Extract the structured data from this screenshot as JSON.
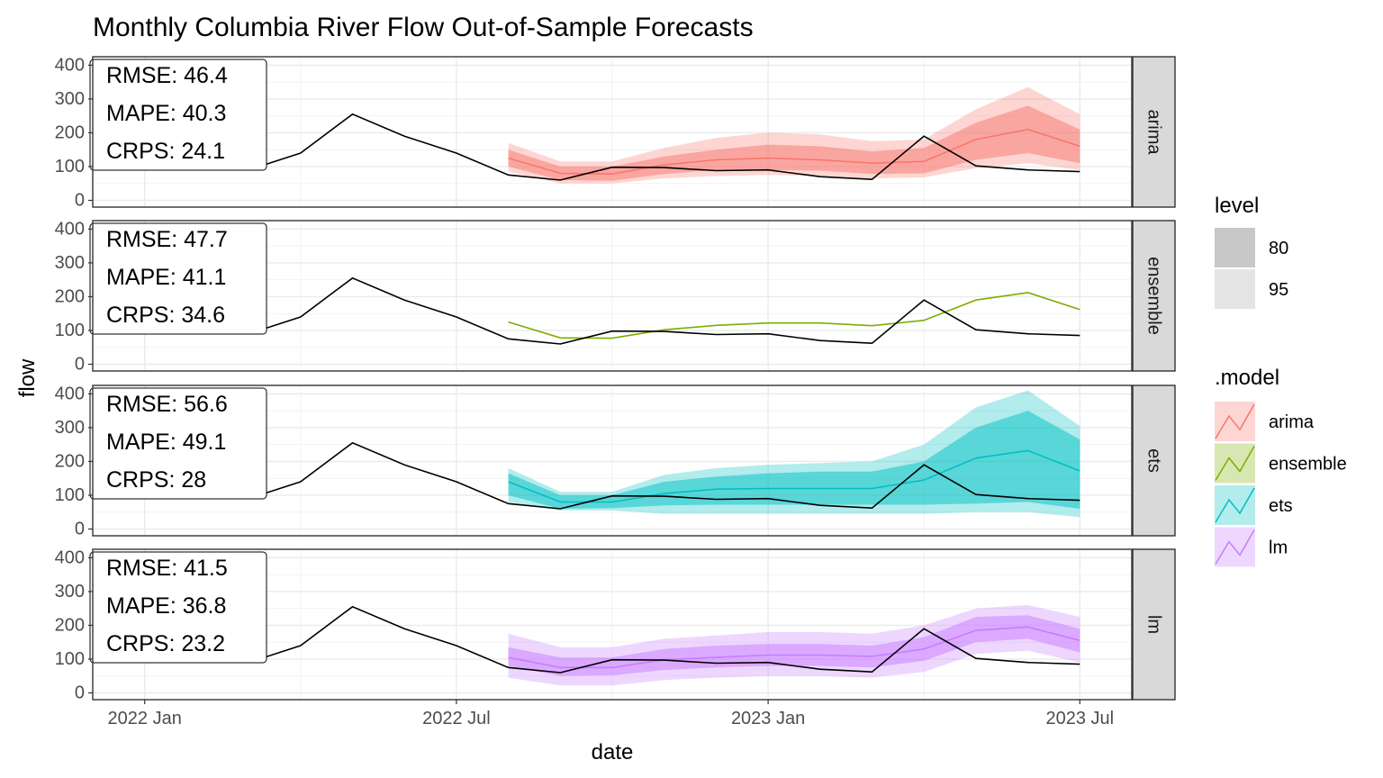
{
  "chart_data": {
    "type": "line",
    "title": "Monthly Columbia River Flow Out-of-Sample Forecasts",
    "xlabel": "date",
    "ylabel": "flow",
    "x_ticks": [
      "2022 Jan",
      "2022 Jul",
      "2023 Jan",
      "2023 Jul"
    ],
    "x_tick_values": [
      "2022-01",
      "2022-07",
      "2023-01",
      "2023-07"
    ],
    "xlim": [
      "2021-12",
      "2023-08"
    ],
    "y_ticks": [
      "0",
      "100",
      "200",
      "300",
      "400"
    ],
    "ylim": [
      -20,
      425
    ],
    "grid": true,
    "legend_placement": "right",
    "actual": {
      "x": [
        "2022-01",
        "2022-02",
        "2022-03",
        "2022-04",
        "2022-05",
        "2022-06",
        "2022-07",
        "2022-08",
        "2022-09",
        "2022-10",
        "2022-11",
        "2022-12",
        "2023-01",
        "2023-02",
        "2023-03",
        "2023-04",
        "2023-05",
        "2023-06",
        "2023-07"
      ],
      "y": [
        120,
        100,
        90,
        140,
        255,
        190,
        140,
        75,
        60,
        98,
        97,
        88,
        90,
        70,
        62,
        190,
        102,
        90,
        85
      ]
    },
    "forecast_x": [
      "2022-08",
      "2022-09",
      "2022-10",
      "2022-11",
      "2022-12",
      "2023-01",
      "2023-02",
      "2023-03",
      "2023-04",
      "2023-05",
      "2023-06",
      "2023-07"
    ],
    "panels": [
      {
        "model": "arima",
        "color": "#F8766D",
        "metrics": [
          "RMSE: 46.4",
          "MAPE:  40.3",
          "CRPS:  24.1"
        ],
        "mean": [
          125,
          80,
          78,
          105,
          120,
          125,
          120,
          110,
          115,
          180,
          210,
          160
        ],
        "lo80": [
          100,
          60,
          58,
          78,
          90,
          90,
          88,
          78,
          80,
          120,
          140,
          110
        ],
        "hi80": [
          150,
          100,
          100,
          130,
          150,
          165,
          160,
          145,
          155,
          230,
          280,
          210
        ],
        "lo95": [
          85,
          50,
          50,
          65,
          72,
          75,
          72,
          65,
          68,
          95,
          110,
          90
        ],
        "hi95": [
          170,
          115,
          115,
          155,
          185,
          200,
          195,
          175,
          180,
          270,
          335,
          255
        ]
      },
      {
        "model": "ensemble",
        "color": "#7CAE00",
        "metrics": [
          "RMSE: 47.7",
          "MAPE:  41.1",
          "CRPS:  34.6"
        ],
        "mean": [
          125,
          78,
          77,
          102,
          115,
          122,
          122,
          114,
          130,
          190,
          212,
          162
        ],
        "lo80": null,
        "hi80": null,
        "lo95": null,
        "hi95": null
      },
      {
        "model": "ets",
        "color": "#00BFC4",
        "metrics": [
          "RMSE: 56.6",
          "MAPE:  49.1",
          "CRPS:  28"
        ],
        "mean": [
          140,
          80,
          80,
          105,
          118,
          120,
          120,
          120,
          145,
          210,
          232,
          172
        ],
        "lo80": [
          100,
          60,
          62,
          70,
          72,
          72,
          72,
          72,
          72,
          75,
          80,
          60
        ],
        "hi80": [
          165,
          100,
          100,
          140,
          155,
          165,
          170,
          170,
          200,
          300,
          350,
          265
        ],
        "lo95": [
          80,
          55,
          55,
          45,
          45,
          45,
          45,
          45,
          45,
          50,
          50,
          35
        ],
        "hi95": [
          180,
          110,
          110,
          160,
          180,
          190,
          195,
          200,
          250,
          360,
          410,
          305
        ]
      },
      {
        "model": "lm",
        "color": "#C77CFF",
        "metrics": [
          "RMSE: 41.5",
          "MAPE:  36.8",
          "CRPS:  23.2"
        ],
        "mean": [
          105,
          75,
          75,
          98,
          105,
          112,
          112,
          108,
          130,
          185,
          195,
          155
        ],
        "lo80": [
          80,
          50,
          52,
          68,
          75,
          80,
          80,
          75,
          95,
          150,
          160,
          120
        ],
        "hi80": [
          135,
          105,
          105,
          130,
          140,
          145,
          145,
          140,
          165,
          225,
          230,
          190
        ],
        "lo95": [
          45,
          22,
          22,
          38,
          45,
          50,
          50,
          45,
          62,
          115,
          125,
          90
        ],
        "hi95": [
          175,
          135,
          135,
          160,
          170,
          180,
          180,
          175,
          200,
          250,
          260,
          225
        ]
      }
    ]
  },
  "legend": {
    "level_title": "level",
    "levels": [
      {
        "label": "80",
        "color": "#c8c8c8"
      },
      {
        "label": "95",
        "color": "#e4e4e4"
      }
    ],
    "model_title": ".model",
    "models": [
      {
        "label": "arima",
        "color": "#F8766D"
      },
      {
        "label": "ensemble",
        "color": "#7CAE00"
      },
      {
        "label": "ets",
        "color": "#00BFC4"
      },
      {
        "label": "lm",
        "color": "#C77CFF"
      }
    ]
  }
}
